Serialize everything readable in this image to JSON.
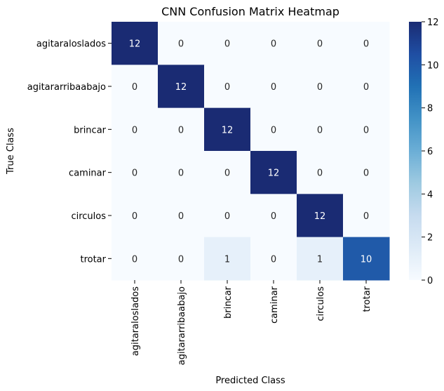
{
  "chart_data": {
    "type": "heatmap",
    "title": "CNN Confusion Matrix Heatmap",
    "xlabel": "Predicted Class",
    "ylabel": "True Class",
    "x_categories": [
      "agitaraloslados",
      "agitararribaabajo",
      "brincar",
      "caminar",
      "circulos",
      "trotar"
    ],
    "y_categories": [
      "agitaraloslados",
      "agitararribaabajo",
      "brincar",
      "caminar",
      "circulos",
      "trotar"
    ],
    "values": [
      [
        12,
        0,
        0,
        0,
        0,
        0
      ],
      [
        0,
        12,
        0,
        0,
        0,
        0
      ],
      [
        0,
        0,
        12,
        0,
        0,
        0
      ],
      [
        0,
        0,
        0,
        12,
        0,
        0
      ],
      [
        0,
        0,
        0,
        0,
        12,
        0
      ],
      [
        0,
        0,
        1,
        0,
        1,
        10
      ]
    ],
    "colorbar": {
      "range": [
        0,
        12
      ],
      "ticks": [
        0,
        2,
        4,
        6,
        8,
        10,
        12
      ],
      "colormap": "Blues-to-navy",
      "stops": [
        "#f7fbff",
        "#deebf7",
        "#c6dbef",
        "#9ecae1",
        "#6baed6",
        "#4292c6",
        "#2171b5",
        "#1f4ea3",
        "#1a2b73"
      ]
    },
    "annotation_colors": {
      "light_cell": "#262626",
      "dark_cell": "#ffffff"
    }
  }
}
